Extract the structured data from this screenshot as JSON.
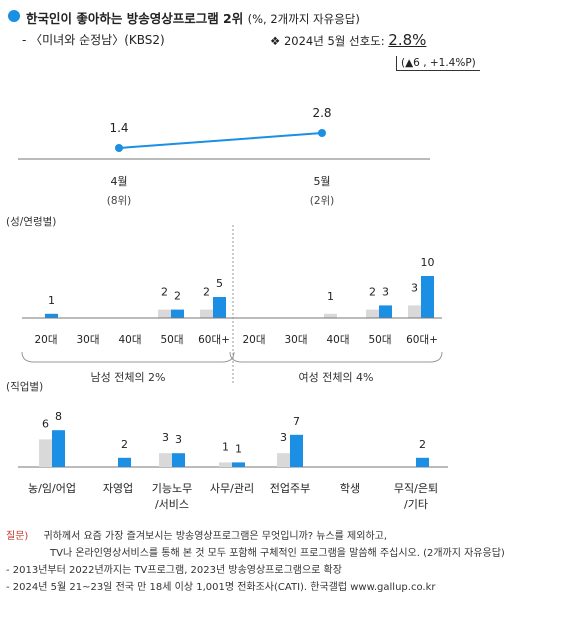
{
  "header": {
    "title": "한국인이 좋아하는 방송영상프로그램 2위",
    "title_note": "(%, 2개까지 자유응답)",
    "program": "- 〈미녀와 순정남〉(KBS2)",
    "preference_label": "❖ 2024년 5월 선호도:",
    "preference_value": "2.8%",
    "change": "(▲6 , +1.4%P)"
  },
  "chart_data": [
    {
      "type": "line",
      "categories": [
        "4월",
        "5월"
      ],
      "rank_labels": [
        "(8위)",
        "(2위)"
      ],
      "values": [
        1.4,
        2.8
      ],
      "value_labels": [
        "1.4",
        "2.8"
      ],
      "color": "#1a8fe3"
    },
    {
      "type": "bar",
      "section_label": "(성/연령별)",
      "groups": [
        {
          "categories": [
            "20대",
            "30대",
            "40대",
            "50대",
            "60대+"
          ],
          "prev": [
            0,
            0,
            0,
            2,
            2
          ],
          "values": [
            1,
            0,
            0,
            2,
            5
          ],
          "value_labels": [
            "1",
            "",
            "",
            "2",
            "5"
          ],
          "prev_labels": [
            "",
            "",
            "",
            "2",
            "2"
          ],
          "summary": "남성 전체의 2%"
        },
        {
          "categories": [
            "20대",
            "30대",
            "40대",
            "50대",
            "60대+"
          ],
          "prev": [
            0,
            0,
            1,
            2,
            3
          ],
          "values": [
            0,
            0,
            0,
            3,
            10
          ],
          "value_labels": [
            "",
            "",
            "",
            "3",
            "10"
          ],
          "prev_labels": [
            "",
            "",
            "1",
            "2",
            "3"
          ],
          "summary": "여성 전체의 4%"
        }
      ],
      "colors": {
        "current": "#1a8fe3",
        "previous": "#d9d9d9"
      }
    },
    {
      "type": "bar",
      "section_label": "(직업별)",
      "categories": [
        "농/임/어업",
        "자영업",
        "기능노무\n/서비스",
        "사무/관리",
        "전업주부",
        "학생",
        "무직/은퇴\n/기타"
      ],
      "prev": [
        6,
        0,
        3,
        1,
        3,
        0,
        0
      ],
      "values": [
        8,
        2,
        3,
        1,
        7,
        0,
        2
      ],
      "prev_labels": [
        "6",
        "",
        "3",
        "1",
        "3",
        "",
        ""
      ],
      "value_labels": [
        "8",
        "2",
        "3",
        "1",
        "7",
        "",
        "2"
      ],
      "colors": {
        "current": "#1a8fe3",
        "previous": "#d9d9d9"
      }
    }
  ],
  "notes": {
    "question_label": "질문)",
    "question_1": "귀하께서 요즘 가장 즐겨보시는 방송영상프로그램은 무엇입니까? 뉴스를 제외하고,",
    "question_2": "TV나 온라인영상서비스를 통해 본 것 모두 포함해 구체적인 프로그램을 말씀해 주십시오. (2개까지 자유응답)",
    "note_1": "- 2013년부터 2022년까지는 TV프로그램, 2023년 방송영상프로그램으로 확장",
    "note_2": "- 2024년 5월 21~23일 전국 만 18세 이상 1,001명 전화조사(CATI). 한국갤럽 www.gallup.co.kr"
  }
}
